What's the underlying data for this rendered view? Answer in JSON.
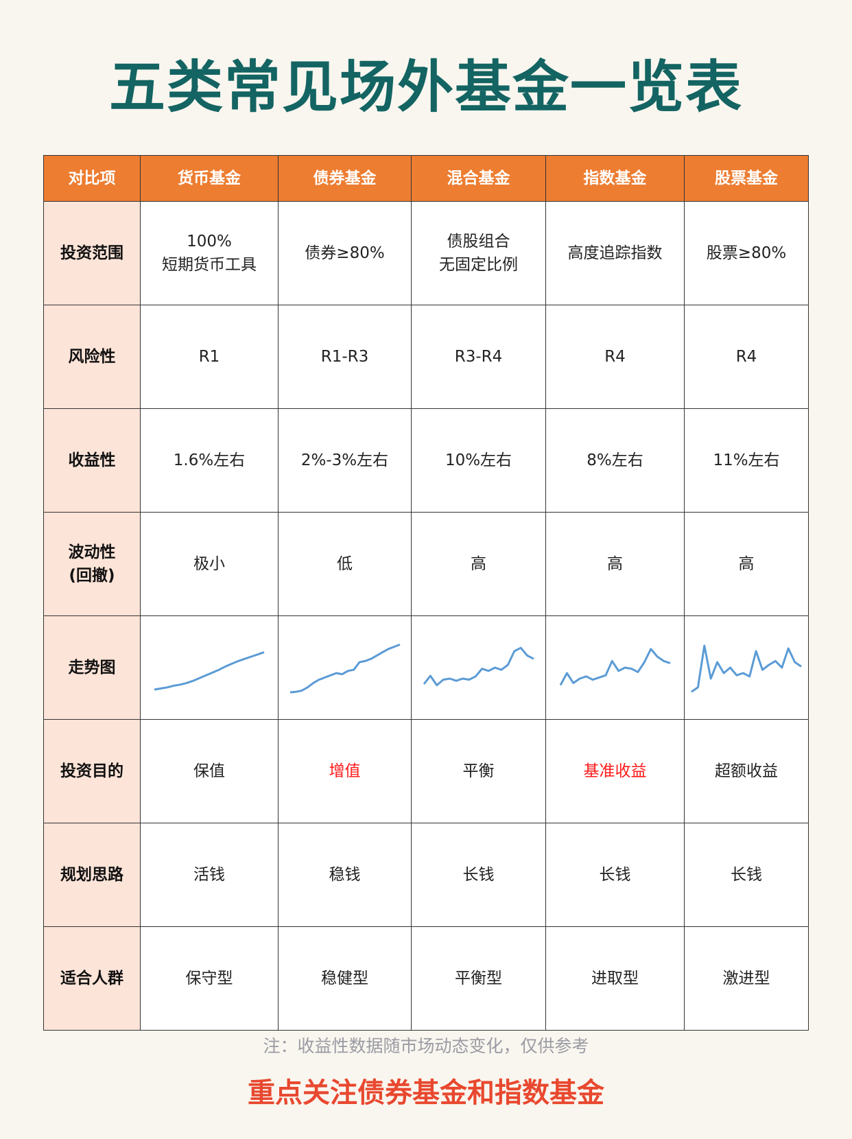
{
  "title": "五类常见场外基金一览表",
  "colors": {
    "title": "#136462",
    "header": "#ed7d31",
    "row_header": "#fde4d8",
    "highlight": "#ff1a1a",
    "line": "#5b9bd5",
    "focus": "#e8482f"
  },
  "table": {
    "headers": [
      "对比项",
      "货币基金",
      "债券基金",
      "混合基金",
      "指数基金",
      "股票基金"
    ],
    "rows": [
      {
        "label": "投资范围",
        "cells": [
          [
            "100%",
            "短期货币工具"
          ],
          [
            "债券≥80%"
          ],
          [
            "债股组合",
            "无固定比例"
          ],
          [
            "高度追踪指数"
          ],
          [
            "股票≥80%"
          ]
        ]
      },
      {
        "label": "风险性",
        "cells": [
          [
            "R1"
          ],
          [
            "R1-R3"
          ],
          [
            "R3-R4"
          ],
          [
            "R4"
          ],
          [
            "R4"
          ]
        ]
      },
      {
        "label": "收益性",
        "cells": [
          [
            "1.6%左右"
          ],
          [
            "2%-3%左右"
          ],
          [
            "10%左右"
          ],
          [
            "8%左右"
          ],
          [
            "11%左右"
          ]
        ]
      },
      {
        "label": "波动性",
        "label2": "(回撤)",
        "cells": [
          [
            "极小"
          ],
          [
            "低"
          ],
          [
            "高"
          ],
          [
            "高"
          ],
          [
            "高"
          ]
        ]
      },
      {
        "label": "走势图",
        "sparkline": true
      },
      {
        "label": "投资目的",
        "cells": [
          [
            "保值"
          ],
          [
            "增值"
          ],
          [
            "平衡"
          ],
          [
            "基准收益"
          ],
          [
            "超额收益"
          ]
        ],
        "highlight": [
          false,
          true,
          false,
          true,
          false
        ]
      },
      {
        "label": "规划思路",
        "cells": [
          [
            "活钱"
          ],
          [
            "稳钱"
          ],
          [
            "长钱"
          ],
          [
            "长钱"
          ],
          [
            "长钱"
          ]
        ]
      },
      {
        "label": "适合人群",
        "cells": [
          [
            "保守型"
          ],
          [
            "稳健型"
          ],
          [
            "平衡型"
          ],
          [
            "进取型"
          ],
          [
            "激进型"
          ]
        ]
      }
    ],
    "sparklines": [
      [
        10,
        12,
        14,
        17,
        19,
        22,
        26,
        31,
        36,
        41,
        46,
        52,
        57,
        62,
        66,
        70,
        74,
        78
      ],
      [
        5,
        6,
        8,
        14,
        22,
        28,
        32,
        36,
        40,
        38,
        44,
        46,
        60,
        62,
        66,
        72,
        78,
        84,
        88,
        92
      ],
      [
        20,
        35,
        18,
        28,
        30,
        26,
        30,
        28,
        34,
        48,
        44,
        50,
        46,
        55,
        80,
        86,
        72,
        66
      ],
      [
        18,
        40,
        22,
        30,
        34,
        28,
        32,
        36,
        62,
        44,
        50,
        48,
        42,
        60,
        84,
        70,
        62,
        58
      ],
      [
        6,
        14,
        90,
        30,
        60,
        40,
        50,
        36,
        40,
        34,
        80,
        46,
        55,
        62,
        50,
        85,
        60,
        52
      ]
    ]
  },
  "note": "注：收益性数据随市场动态变化，仅供参考",
  "focus": "重点关注债券基金和指数基金"
}
